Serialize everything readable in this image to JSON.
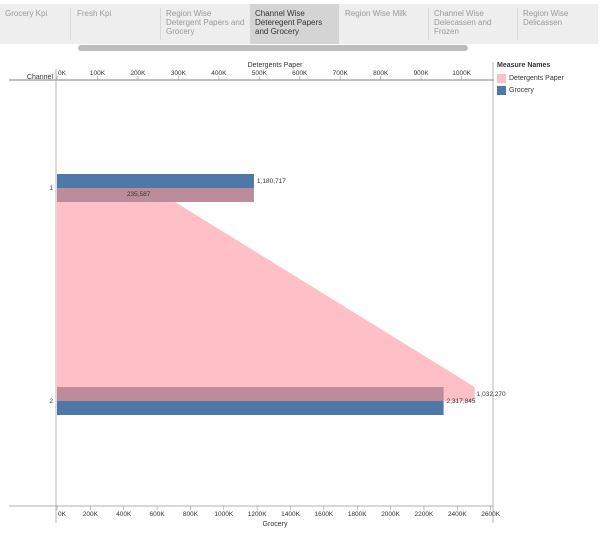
{
  "tabs": [
    {
      "label": "Grocery Kpi",
      "active": false
    },
    {
      "label": "Fresh Kpi",
      "active": false
    },
    {
      "label": "Region Wise Detergent Papers and Grocery",
      "active": false
    },
    {
      "label": "Channel Wise Deteregent Papers and Grocery",
      "active": true
    },
    {
      "label": "Region Wise Milk",
      "active": false
    },
    {
      "label": "Channel Wise Delecassen and Frozen",
      "active": false
    },
    {
      "label": "Region Wise Delicassen",
      "active": false
    }
  ],
  "colors": {
    "detergents": "#ffbfc6",
    "grocery": "#4e78a7",
    "overlap": "#bd8c9a",
    "axis": "#999999",
    "text": "#333333"
  },
  "chart_data": {
    "type": "bar",
    "orientation": "horizontal",
    "row_axis_label": "Channel",
    "categories": [
      "1",
      "2"
    ],
    "top_axis": {
      "label": "Detergents Paper",
      "range": [
        0,
        1080000
      ],
      "ticks": [
        0,
        100000,
        200000,
        300000,
        400000,
        500000,
        600000,
        700000,
        800000,
        900000,
        1000000
      ],
      "tick_labels": [
        "0K",
        "100K",
        "200K",
        "300K",
        "400K",
        "500K",
        "600K",
        "700K",
        "800K",
        "900K",
        "1000K"
      ]
    },
    "bottom_axis": {
      "label": "Grocery",
      "range": [
        0,
        2620000
      ],
      "ticks": [
        0,
        200000,
        400000,
        600000,
        800000,
        1000000,
        1200000,
        1400000,
        1600000,
        1800000,
        2000000,
        2200000,
        2400000,
        2600000
      ],
      "tick_labels": [
        "0K",
        "200K",
        "400K",
        "600K",
        "800K",
        "1000K",
        "1200K",
        "1400K",
        "1600K",
        "1800K",
        "2000K",
        "2200K",
        "2400K",
        "2600K"
      ]
    },
    "series": [
      {
        "name": "Detergents Paper",
        "axis": "top",
        "mark": "area",
        "values": [
          235587,
          1032270
        ],
        "labels": [
          "235,587",
          "1,032,270"
        ]
      },
      {
        "name": "Grocery",
        "axis": "bottom",
        "mark": "bar",
        "values": [
          1180717,
          2317845
        ],
        "labels": [
          "1,180,717",
          "2,317,845"
        ]
      }
    ]
  },
  "legend": {
    "title": "Measure Names",
    "items": [
      {
        "label": "Detergents Paper",
        "color": "#ffbfc6"
      },
      {
        "label": "Grocery",
        "color": "#4e78a7"
      }
    ]
  }
}
